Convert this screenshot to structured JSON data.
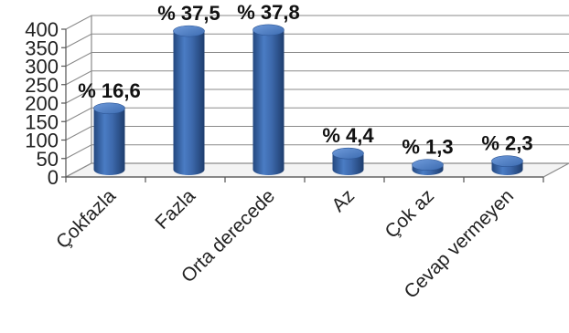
{
  "chart_data": {
    "type": "bar",
    "categories": [
      "Çokfazla",
      "Fazla",
      "Orta derecede",
      "Az",
      "Çok az",
      "Cevap vermeyen"
    ],
    "values": [
      166,
      375,
      378,
      44,
      13,
      23
    ],
    "data_labels": [
      "% 16,6",
      "% 37,5",
      "% 37,8",
      "% 4,4",
      "% 1,3",
      "% 2,3"
    ],
    "ylim": [
      0,
      400
    ],
    "yticks": [
      "0",
      "50",
      "100",
      "150",
      "200",
      "250",
      "300",
      "350",
      "400"
    ],
    "grid": true,
    "bar_color": "#3f6fb3"
  }
}
